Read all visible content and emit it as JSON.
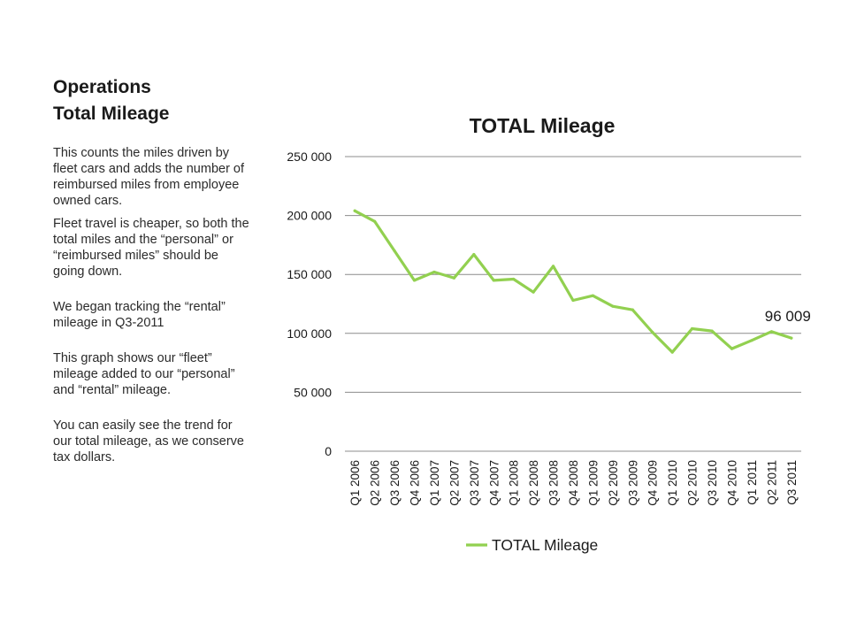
{
  "slide": {
    "heading_line1": "Operations",
    "heading_line2": "Total Mileage",
    "paragraphs": [
      "This counts the miles driven by fleet cars and adds the number of reimbursed miles from employee owned cars.",
      "Fleet travel is cheaper, so both the total miles and the “personal” or “reimbursed miles” should be going down.",
      "We began tracking the “rental” mileage in Q3-2011",
      "This graph shows our “fleet” mileage added to our “personal”  and “rental” mileage.",
      "You can easily see the trend for our total mileage, as we conserve tax dollars."
    ]
  },
  "chart_data": {
    "type": "line",
    "title": "TOTAL Mileage",
    "categories": [
      "Q1 2006",
      "Q2 2006",
      "Q3 2006",
      "Q4 2006",
      "Q1 2007",
      "Q2 2007",
      "Q3 2007",
      "Q4 2007",
      "Q1 2008",
      "Q2 2008",
      "Q3 2008",
      "Q4 2008",
      "Q1 2009",
      "Q2 2009",
      "Q3 2009",
      "Q4 2009",
      "Q1 2010",
      "Q2 2010",
      "Q3 2010",
      "Q4 2010",
      "Q1 2011",
      "Q2 2011",
      "Q3 2011"
    ],
    "series": [
      {
        "name": "TOTAL Mileage",
        "color": "#92D050",
        "values": [
          204000,
          195000,
          170000,
          145000,
          152000,
          147000,
          167000,
          145000,
          146000,
          135000,
          157000,
          128000,
          132000,
          123000,
          120000,
          101000,
          84000,
          104000,
          102000,
          87000,
          94000,
          101500,
          96009
        ]
      }
    ],
    "ylim": [
      0,
      250000
    ],
    "yticks": [
      0,
      50000,
      100000,
      150000,
      200000,
      250000
    ],
    "ytick_labels": [
      "0",
      "50 000",
      "100 000",
      "150 000",
      "200 000",
      "250 000"
    ],
    "grid": true,
    "legend": "bottom",
    "annotation": {
      "text": "96 009",
      "category": "Q3 2011"
    }
  }
}
